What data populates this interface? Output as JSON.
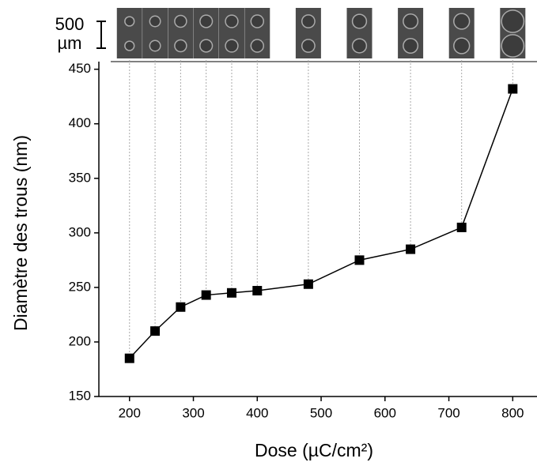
{
  "chart_data": {
    "type": "line",
    "x_label": "Dose (µC/cm²)",
    "y_label": "Diamètre des trous (nm)",
    "scale_label": "500\nµm",
    "series": [
      {
        "color": "#000000",
        "x": [
          200,
          240,
          280,
          320,
          360,
          400,
          480,
          560,
          640,
          720,
          800
        ],
        "values": [
          185,
          210,
          232,
          243,
          245,
          247,
          253,
          275,
          285,
          305,
          432
        ]
      }
    ],
    "xlim": [
      152,
      838
    ],
    "xticks": [
      200,
      300,
      400,
      500,
      600,
      700,
      800
    ],
    "ylim": [
      150,
      457
    ],
    "yticks": [
      150,
      200,
      250,
      300,
      350,
      400,
      450
    ]
  }
}
